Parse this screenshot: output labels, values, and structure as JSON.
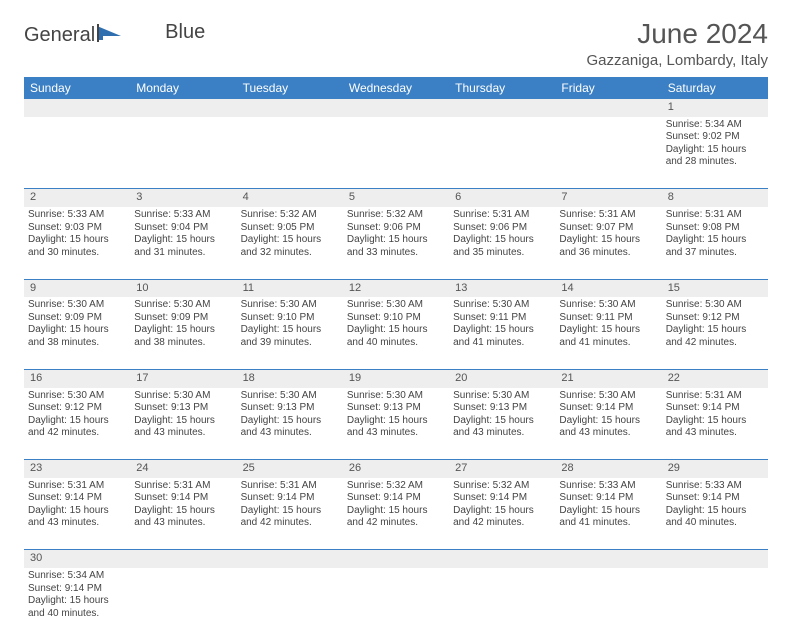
{
  "logo": {
    "text1": "General",
    "text2": "Blue"
  },
  "title": "June 2024",
  "location": "Gazzaniga, Lombardy, Italy",
  "colors": {
    "header_bg": "#3b7fc4",
    "header_fg": "#ffffff",
    "daynum_bg": "#eeeeee",
    "border": "#3b7fc4"
  },
  "weekdays": [
    "Sunday",
    "Monday",
    "Tuesday",
    "Wednesday",
    "Thursday",
    "Friday",
    "Saturday"
  ],
  "weeks": [
    [
      null,
      null,
      null,
      null,
      null,
      null,
      {
        "n": "1",
        "sr": "Sunrise: 5:34 AM",
        "ss": "Sunset: 9:02 PM",
        "dl1": "Daylight: 15 hours",
        "dl2": "and 28 minutes."
      }
    ],
    [
      {
        "n": "2",
        "sr": "Sunrise: 5:33 AM",
        "ss": "Sunset: 9:03 PM",
        "dl1": "Daylight: 15 hours",
        "dl2": "and 30 minutes."
      },
      {
        "n": "3",
        "sr": "Sunrise: 5:33 AM",
        "ss": "Sunset: 9:04 PM",
        "dl1": "Daylight: 15 hours",
        "dl2": "and 31 minutes."
      },
      {
        "n": "4",
        "sr": "Sunrise: 5:32 AM",
        "ss": "Sunset: 9:05 PM",
        "dl1": "Daylight: 15 hours",
        "dl2": "and 32 minutes."
      },
      {
        "n": "5",
        "sr": "Sunrise: 5:32 AM",
        "ss": "Sunset: 9:06 PM",
        "dl1": "Daylight: 15 hours",
        "dl2": "and 33 minutes."
      },
      {
        "n": "6",
        "sr": "Sunrise: 5:31 AM",
        "ss": "Sunset: 9:06 PM",
        "dl1": "Daylight: 15 hours",
        "dl2": "and 35 minutes."
      },
      {
        "n": "7",
        "sr": "Sunrise: 5:31 AM",
        "ss": "Sunset: 9:07 PM",
        "dl1": "Daylight: 15 hours",
        "dl2": "and 36 minutes."
      },
      {
        "n": "8",
        "sr": "Sunrise: 5:31 AM",
        "ss": "Sunset: 9:08 PM",
        "dl1": "Daylight: 15 hours",
        "dl2": "and 37 minutes."
      }
    ],
    [
      {
        "n": "9",
        "sr": "Sunrise: 5:30 AM",
        "ss": "Sunset: 9:09 PM",
        "dl1": "Daylight: 15 hours",
        "dl2": "and 38 minutes."
      },
      {
        "n": "10",
        "sr": "Sunrise: 5:30 AM",
        "ss": "Sunset: 9:09 PM",
        "dl1": "Daylight: 15 hours",
        "dl2": "and 38 minutes."
      },
      {
        "n": "11",
        "sr": "Sunrise: 5:30 AM",
        "ss": "Sunset: 9:10 PM",
        "dl1": "Daylight: 15 hours",
        "dl2": "and 39 minutes."
      },
      {
        "n": "12",
        "sr": "Sunrise: 5:30 AM",
        "ss": "Sunset: 9:10 PM",
        "dl1": "Daylight: 15 hours",
        "dl2": "and 40 minutes."
      },
      {
        "n": "13",
        "sr": "Sunrise: 5:30 AM",
        "ss": "Sunset: 9:11 PM",
        "dl1": "Daylight: 15 hours",
        "dl2": "and 41 minutes."
      },
      {
        "n": "14",
        "sr": "Sunrise: 5:30 AM",
        "ss": "Sunset: 9:11 PM",
        "dl1": "Daylight: 15 hours",
        "dl2": "and 41 minutes."
      },
      {
        "n": "15",
        "sr": "Sunrise: 5:30 AM",
        "ss": "Sunset: 9:12 PM",
        "dl1": "Daylight: 15 hours",
        "dl2": "and 42 minutes."
      }
    ],
    [
      {
        "n": "16",
        "sr": "Sunrise: 5:30 AM",
        "ss": "Sunset: 9:12 PM",
        "dl1": "Daylight: 15 hours",
        "dl2": "and 42 minutes."
      },
      {
        "n": "17",
        "sr": "Sunrise: 5:30 AM",
        "ss": "Sunset: 9:13 PM",
        "dl1": "Daylight: 15 hours",
        "dl2": "and 43 minutes."
      },
      {
        "n": "18",
        "sr": "Sunrise: 5:30 AM",
        "ss": "Sunset: 9:13 PM",
        "dl1": "Daylight: 15 hours",
        "dl2": "and 43 minutes."
      },
      {
        "n": "19",
        "sr": "Sunrise: 5:30 AM",
        "ss": "Sunset: 9:13 PM",
        "dl1": "Daylight: 15 hours",
        "dl2": "and 43 minutes."
      },
      {
        "n": "20",
        "sr": "Sunrise: 5:30 AM",
        "ss": "Sunset: 9:13 PM",
        "dl1": "Daylight: 15 hours",
        "dl2": "and 43 minutes."
      },
      {
        "n": "21",
        "sr": "Sunrise: 5:30 AM",
        "ss": "Sunset: 9:14 PM",
        "dl1": "Daylight: 15 hours",
        "dl2": "and 43 minutes."
      },
      {
        "n": "22",
        "sr": "Sunrise: 5:31 AM",
        "ss": "Sunset: 9:14 PM",
        "dl1": "Daylight: 15 hours",
        "dl2": "and 43 minutes."
      }
    ],
    [
      {
        "n": "23",
        "sr": "Sunrise: 5:31 AM",
        "ss": "Sunset: 9:14 PM",
        "dl1": "Daylight: 15 hours",
        "dl2": "and 43 minutes."
      },
      {
        "n": "24",
        "sr": "Sunrise: 5:31 AM",
        "ss": "Sunset: 9:14 PM",
        "dl1": "Daylight: 15 hours",
        "dl2": "and 43 minutes."
      },
      {
        "n": "25",
        "sr": "Sunrise: 5:31 AM",
        "ss": "Sunset: 9:14 PM",
        "dl1": "Daylight: 15 hours",
        "dl2": "and 42 minutes."
      },
      {
        "n": "26",
        "sr": "Sunrise: 5:32 AM",
        "ss": "Sunset: 9:14 PM",
        "dl1": "Daylight: 15 hours",
        "dl2": "and 42 minutes."
      },
      {
        "n": "27",
        "sr": "Sunrise: 5:32 AM",
        "ss": "Sunset: 9:14 PM",
        "dl1": "Daylight: 15 hours",
        "dl2": "and 42 minutes."
      },
      {
        "n": "28",
        "sr": "Sunrise: 5:33 AM",
        "ss": "Sunset: 9:14 PM",
        "dl1": "Daylight: 15 hours",
        "dl2": "and 41 minutes."
      },
      {
        "n": "29",
        "sr": "Sunrise: 5:33 AM",
        "ss": "Sunset: 9:14 PM",
        "dl1": "Daylight: 15 hours",
        "dl2": "and 40 minutes."
      }
    ],
    [
      {
        "n": "30",
        "sr": "Sunrise: 5:34 AM",
        "ss": "Sunset: 9:14 PM",
        "dl1": "Daylight: 15 hours",
        "dl2": "and 40 minutes."
      },
      null,
      null,
      null,
      null,
      null,
      null
    ]
  ]
}
